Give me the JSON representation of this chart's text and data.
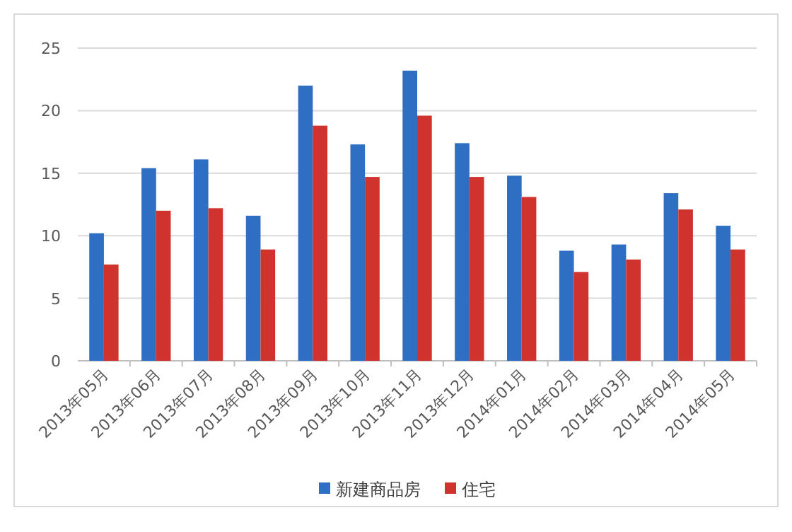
{
  "chart_data": {
    "type": "bar",
    "categories": [
      "2013年05月",
      "2013年06月",
      "2013年07月",
      "2013年08月",
      "2013年09月",
      "2013年10月",
      "2013年11月",
      "2013年12月",
      "2014年01月",
      "2014年02月",
      "2014年03月",
      "2014年04月",
      "2014年05月"
    ],
    "series": [
      {
        "name": "新建商品房",
        "color": "#2e6fc4",
        "values": [
          10.2,
          15.4,
          16.1,
          11.6,
          22.0,
          17.3,
          23.2,
          17.4,
          14.8,
          8.8,
          9.3,
          13.4,
          10.8
        ]
      },
      {
        "name": "住宅",
        "color": "#d0332e",
        "values": [
          7.7,
          12.0,
          12.2,
          8.9,
          18.8,
          14.7,
          19.6,
          14.7,
          13.1,
          7.1,
          8.1,
          12.1,
          8.9
        ]
      }
    ],
    "ylim": [
      0,
      25
    ],
    "yticks": [
      0,
      5,
      10,
      15,
      20,
      25
    ],
    "grid": "y",
    "legend": "bottom"
  }
}
